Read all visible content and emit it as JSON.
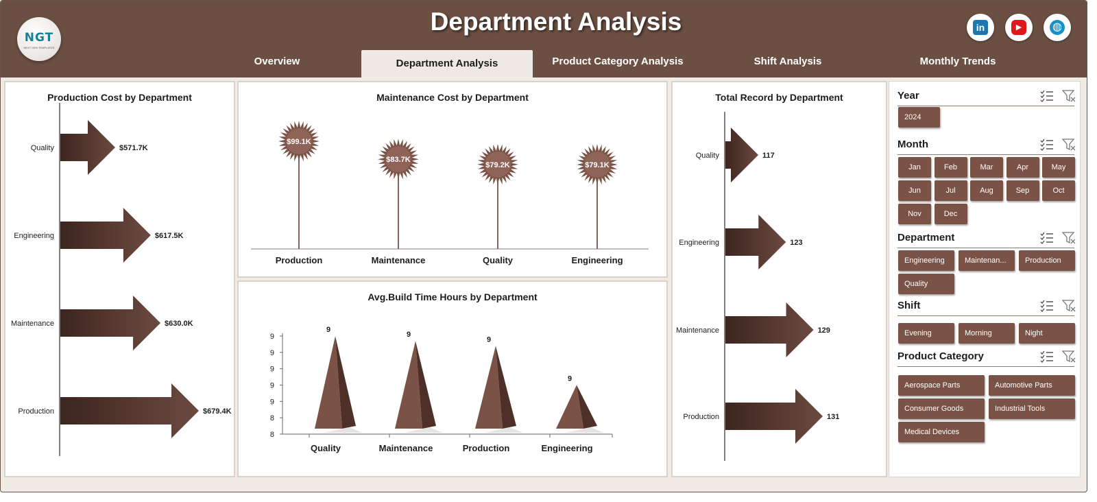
{
  "header": {
    "title": "Department Analysis",
    "logo_text": "NGT",
    "logo_subtext": "NEXT GEN TEMPLATES",
    "social_icons": [
      "linkedin-icon",
      "youtube-icon",
      "globe-icon"
    ],
    "social_labels": {
      "linkedin": "in",
      "youtube": "▶",
      "web": "◍"
    }
  },
  "tabs": [
    {
      "label": "Overview",
      "active": false
    },
    {
      "label": "Department Analysis",
      "active": true
    },
    {
      "label": "Product Category Analysis",
      "active": false
    },
    {
      "label": "Shift Analysis",
      "active": false
    },
    {
      "label": "Monthly Trends",
      "active": false
    }
  ],
  "colors": {
    "header_bg": "#6b4f42",
    "accent": "#6b4a40",
    "accent_dark": "#3d2520",
    "chip_bg": "#7b5246",
    "page_bg": "#f1ebe6"
  },
  "panels": {
    "production_cost": {
      "title": "Production Cost by Department"
    },
    "maintenance_cost": {
      "title": "Maintenance  Cost by Department"
    },
    "build_time": {
      "title": "Avg.Build Time Hours by Department"
    },
    "total_record": {
      "title": "Total Record by Department"
    }
  },
  "chart_data": [
    {
      "id": "production_cost",
      "type": "bar",
      "orientation": "horizontal",
      "title": "Production Cost by Department",
      "categories": [
        "Quality",
        "Engineering",
        "Maintenance",
        "Production"
      ],
      "values": [
        571.7,
        617.5,
        630.0,
        679.4
      ],
      "labels": [
        "$571.7K",
        "$617.5K",
        "$630.0K",
        "$679.4K"
      ],
      "unit": "K"
    },
    {
      "id": "maintenance_cost",
      "type": "bar",
      "title": "Maintenance  Cost by Department",
      "categories": [
        "Production",
        "Maintenance",
        "Quality",
        "Engineering"
      ],
      "values": [
        99.1,
        83.7,
        79.2,
        79.1
      ],
      "labels": [
        "$99.1K",
        "$83.7K",
        "$79.2K",
        "$79.1K"
      ],
      "unit": "K"
    },
    {
      "id": "build_time",
      "type": "bar",
      "title": "Avg.Build Time Hours by Department",
      "categories": [
        "Quality",
        "Maintenance",
        "Production",
        "Engineering"
      ],
      "values": [
        9.0,
        8.95,
        8.9,
        8.5
      ],
      "labels": [
        "9",
        "9",
        "9",
        "9"
      ],
      "ylim": [
        8.0,
        9.0
      ],
      "y_tick_labels": [
        "8",
        "8",
        "9",
        "9",
        "9",
        "9",
        "9"
      ]
    },
    {
      "id": "total_record",
      "type": "bar",
      "orientation": "horizontal",
      "title": "Total Record by Department",
      "categories": [
        "Quality",
        "Engineering",
        "Maintenance",
        "Production"
      ],
      "values": [
        117,
        123,
        129,
        131
      ],
      "labels": [
        "117",
        "123",
        "129",
        "131"
      ]
    }
  ],
  "slicers": [
    {
      "name": "year",
      "label": "Year",
      "items": [
        "2024"
      ]
    },
    {
      "name": "month",
      "label": "Month",
      "items": [
        "Jan",
        "Feb",
        "Mar",
        "Apr",
        "May",
        "Jun",
        "Jul",
        "Aug",
        "Sep",
        "Oct",
        "Nov",
        "Dec"
      ]
    },
    {
      "name": "department",
      "label": "Department",
      "items": [
        "Engineering",
        "Maintenan...",
        "Production",
        "Quality"
      ]
    },
    {
      "name": "shift",
      "label": "Shift",
      "items": [
        "Evening",
        "Morning",
        "Night"
      ]
    },
    {
      "name": "product-category",
      "label": "Product Category",
      "items": [
        "Aerospace Parts",
        "Automotive Parts",
        "Consumer Goods",
        "Industrial Tools",
        "Medical Devices"
      ]
    }
  ]
}
